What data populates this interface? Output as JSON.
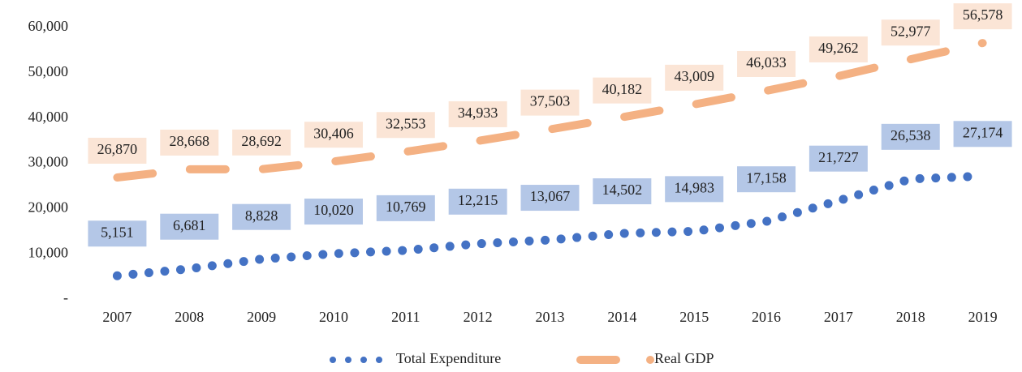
{
  "chart_data": {
    "type": "line",
    "categories": [
      "2007",
      "2008",
      "2009",
      "2010",
      "2011",
      "2012",
      "2013",
      "2014",
      "2015",
      "2016",
      "2017",
      "2018",
      "2019"
    ],
    "series": [
      {
        "name": "Total Expenditure",
        "color": "#4472c4",
        "label_fill": "#b4c7e7",
        "style": "dotted",
        "values": [
          5151,
          6681,
          8828,
          10020,
          10769,
          12215,
          13067,
          14502,
          14983,
          17158,
          21727,
          26538,
          27174
        ],
        "value_labels": [
          "5,151",
          "6,681",
          "8,828",
          "10,020",
          "10,769",
          "12,215",
          "13,067",
          "14,502",
          "14,983",
          "17,158",
          "21,727",
          "26,538",
          "27,174"
        ]
      },
      {
        "name": "Real GDP",
        "color": "#f4b183",
        "label_fill": "#fbe5d6",
        "style": "dashed",
        "values": [
          26870,
          28668,
          28692,
          30406,
          32553,
          34933,
          37503,
          40182,
          43009,
          46033,
          49262,
          52977,
          56578
        ],
        "value_labels": [
          "26,870",
          "28,668",
          "28,692",
          "30,406",
          "32,553",
          "34,933",
          "37,503",
          "40,182",
          "43,009",
          "46,033",
          "49,262",
          "52,977",
          "56,578"
        ]
      }
    ],
    "ylim": [
      0,
      60000
    ],
    "yticks": [
      {
        "value": 0,
        "label": "-"
      },
      {
        "value": 10000,
        "label": "10,000"
      },
      {
        "value": 20000,
        "label": "20,000"
      },
      {
        "value": 30000,
        "label": "30,000"
      },
      {
        "value": 40000,
        "label": "40,000"
      },
      {
        "value": 50000,
        "label": "50,000"
      },
      {
        "value": 60000,
        "label": "60,000"
      }
    ],
    "legend": "bottom"
  }
}
